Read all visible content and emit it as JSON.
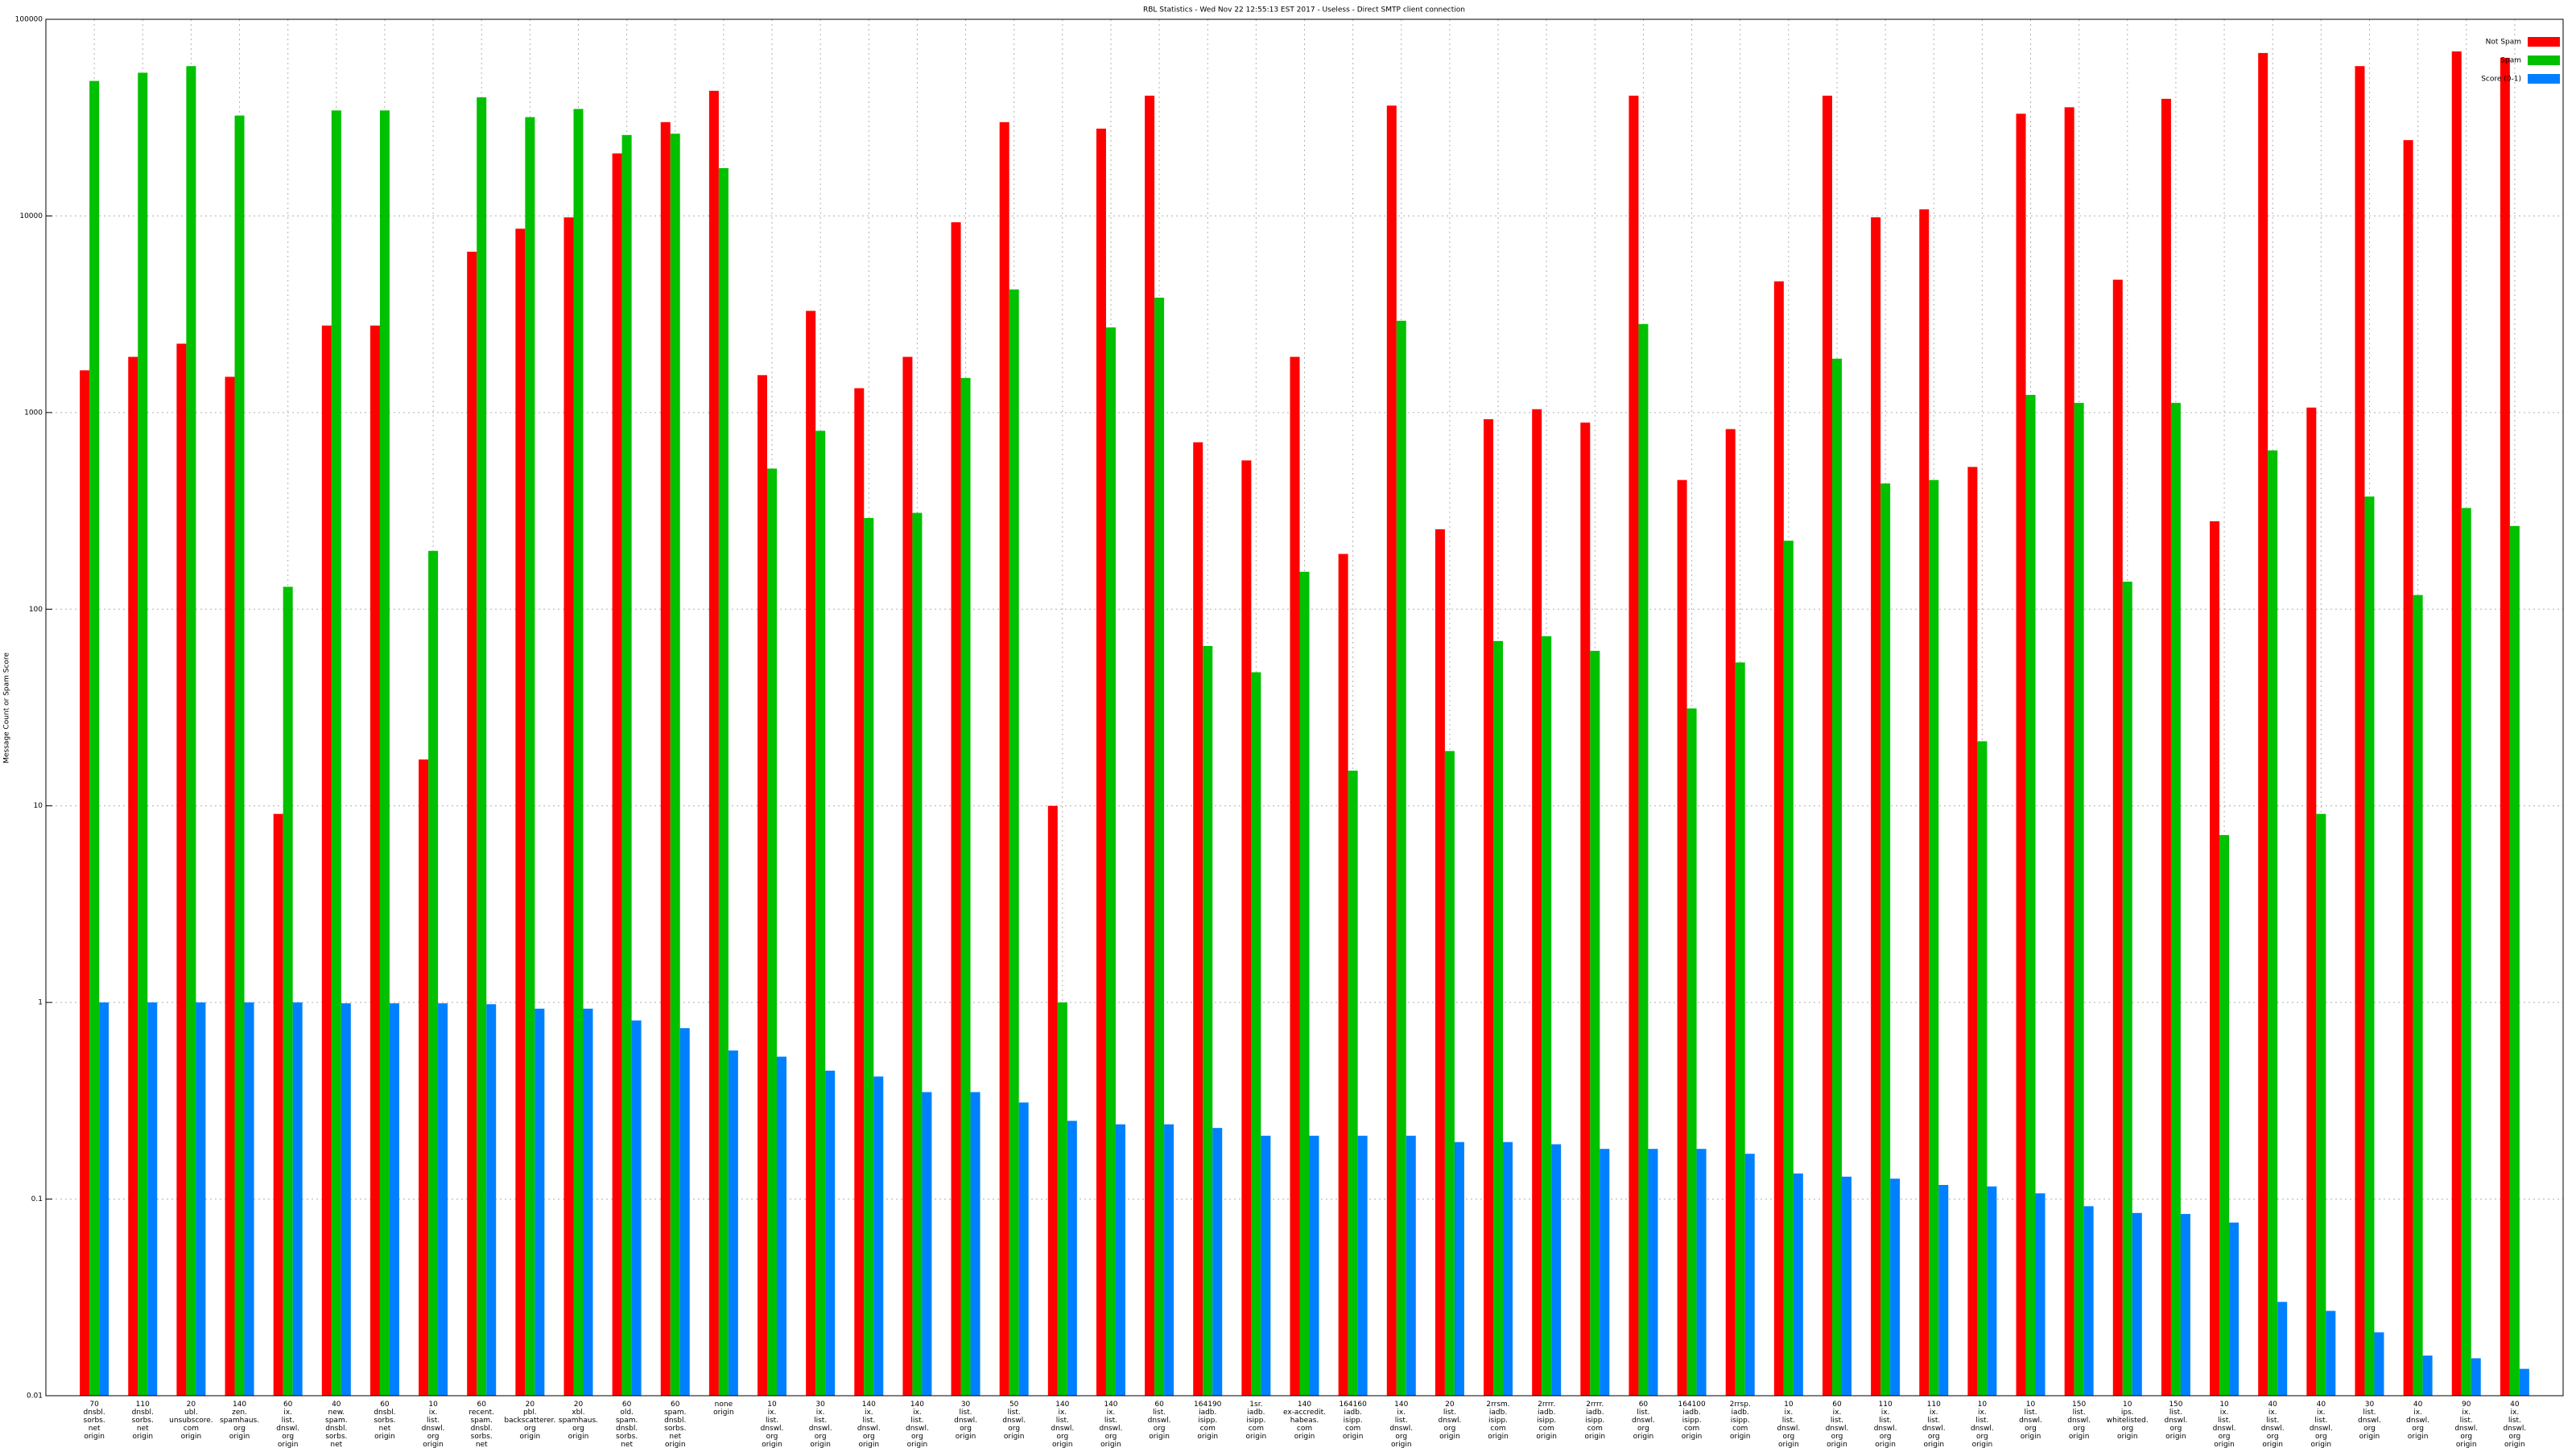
{
  "chart_data": {
    "type": "bar",
    "title": "RBL Statistics - Wed Nov 22 12:55:13 EST 2017 - Useless - Direct SMTP client connection",
    "ylabel": "Message Count or Spam Score",
    "log_y": true,
    "grid": true,
    "legend": "upper right",
    "ylim": [
      0.01,
      100000
    ],
    "yticks": [
      0.01,
      0.1,
      1,
      10,
      100,
      1000,
      10000,
      100000
    ],
    "categories": [
      [
        "70",
        "dnsbl.",
        "sorbs.",
        "net",
        "origin"
      ],
      [
        "110",
        "dnsbl.",
        "sorbs.",
        "net",
        "origin"
      ],
      [
        "20",
        "ubl.",
        "unsubscore.",
        "com",
        "origin"
      ],
      [
        "140",
        "zen.",
        "spamhaus.",
        "org",
        "origin"
      ],
      [
        "60",
        "ix.",
        "list.",
        "dnswl.",
        "org",
        "origin"
      ],
      [
        "40",
        "new.",
        "spam.",
        "dnsbl.",
        "sorbs.",
        "net",
        "origin"
      ],
      [
        "60",
        "dnsbl.",
        "sorbs.",
        "net",
        "origin"
      ],
      [
        "10",
        "ix.",
        "list.",
        "dnswl.",
        "org",
        "origin"
      ],
      [
        "60",
        "recent.",
        "spam.",
        "dnsbl.",
        "sorbs.",
        "net",
        "origin"
      ],
      [
        "20",
        "pbl.",
        "backscatterer.",
        "org",
        "origin"
      ],
      [
        "20",
        "xbl.",
        "spamhaus.",
        "org",
        "origin"
      ],
      [
        "60",
        "old.",
        "spam.",
        "dnsbl.",
        "sorbs.",
        "net",
        "origin"
      ],
      [
        "60",
        "spam.",
        "dnsbl.",
        "sorbs.",
        "net",
        "origin"
      ],
      [
        "none",
        "origin"
      ],
      [
        "10",
        "ix.",
        "list.",
        "dnswl.",
        "org",
        "origin"
      ],
      [
        "30",
        "ix.",
        "list.",
        "dnswl.",
        "org",
        "origin"
      ],
      [
        "140",
        "ix.",
        "list.",
        "dnswl.",
        "org",
        "origin"
      ],
      [
        "140",
        "ix.",
        "list.",
        "dnswl.",
        "org",
        "origin"
      ],
      [
        "30",
        "list.",
        "dnswl.",
        "org",
        "origin"
      ],
      [
        "50",
        "list.",
        "dnswl.",
        "org",
        "origin"
      ],
      [
        "140",
        "ix.",
        "list.",
        "dnswl.",
        "org",
        "origin"
      ],
      [
        "140",
        "ix.",
        "list.",
        "dnswl.",
        "org",
        "origin"
      ],
      [
        "60",
        "list.",
        "dnswl.",
        "org",
        "origin"
      ],
      [
        "164190",
        "iadb.",
        "isipp.",
        "com",
        "origin"
      ],
      [
        "1sr.",
        "iadb.",
        "isipp.",
        "com",
        "origin"
      ],
      [
        "140",
        "ex-accredit.",
        "habeas.",
        "com",
        "origin"
      ],
      [
        "164160",
        "iadb.",
        "isipp.",
        "com",
        "origin"
      ],
      [
        "140",
        "ix.",
        "list.",
        "dnswl.",
        "org",
        "origin"
      ],
      [
        "20",
        "list.",
        "dnswl.",
        "org",
        "origin"
      ],
      [
        "2rrsm.",
        "iadb.",
        "isipp.",
        "com",
        "origin"
      ],
      [
        "2rrrr.",
        "iadb.",
        "isipp.",
        "com",
        "origin"
      ],
      [
        "2rrrr.",
        "iadb.",
        "isipp.",
        "com",
        "origin"
      ],
      [
        "60",
        "list.",
        "dnswl.",
        "org",
        "origin"
      ],
      [
        "164100",
        "iadb.",
        "isipp.",
        "com",
        "origin"
      ],
      [
        "2rrsp.",
        "iadb.",
        "isipp.",
        "com",
        "origin"
      ],
      [
        "10",
        "ix.",
        "list.",
        "dnswl.",
        "org",
        "origin"
      ],
      [
        "60",
        "ix.",
        "list.",
        "dnswl.",
        "org",
        "origin"
      ],
      [
        "110",
        "ix.",
        "list.",
        "dnswl.",
        "org",
        "origin"
      ],
      [
        "110",
        "ix.",
        "list.",
        "dnswl.",
        "org",
        "origin"
      ],
      [
        "10",
        "ix.",
        "list.",
        "dnswl.",
        "org",
        "origin"
      ],
      [
        "10",
        "list.",
        "dnswl.",
        "org",
        "origin"
      ],
      [
        "150",
        "list.",
        "dnswl.",
        "org",
        "origin"
      ],
      [
        "10",
        "ips.",
        "whitelisted.",
        "org",
        "origin"
      ],
      [
        "150",
        "list.",
        "dnswl.",
        "org",
        "origin"
      ],
      [
        "10",
        "ix.",
        "list.",
        "dnswl.",
        "org",
        "origin"
      ],
      [
        "40",
        "ix.",
        "list.",
        "dnswl.",
        "org",
        "origin"
      ],
      [
        "40",
        "ix.",
        "list.",
        "dnswl.",
        "org",
        "origin"
      ],
      [
        "30",
        "list.",
        "dnswl.",
        "org",
        "origin"
      ],
      [
        "40",
        "ix.",
        "dnswl.",
        "org",
        "origin"
      ],
      [
        "90",
        "ix.",
        "list.",
        "dnswl.",
        "org",
        "origin"
      ],
      [
        "40",
        "ix.",
        "list.",
        "dnswl.",
        "org",
        "origin"
      ]
    ],
    "series": [
      {
        "name": "Not Spam",
        "color": "#ff0000",
        "values": [
          1640,
          1920,
          2240,
          1520,
          9.1,
          2770,
          2770,
          17.2,
          6580,
          8610,
          9830,
          20800,
          30000,
          43300,
          1550,
          3290,
          1330,
          1920,
          9290,
          30000,
          10,
          27800,
          40900,
          706,
          571,
          1920,
          191,
          36400,
          255,
          925,
          1040,
          889,
          40900,
          454,
          824,
          4650,
          40900,
          9840,
          10800,
          529,
          33100,
          35700,
          4740,
          39400,
          280,
          67400,
          1060,
          57800,
          24300,
          68700,
          63700
        ]
      },
      {
        "name": "Spam",
        "color": "#00c000",
        "values": [
          48600,
          53500,
          57800,
          32400,
          130,
          34400,
          34400,
          198,
          40100,
          31800,
          35000,
          25800,
          26200,
          17500,
          519,
          808,
          291,
          309,
          1500,
          4230,
          1,
          2710,
          3840,
          65,
          47.8,
          155,
          15.1,
          2930,
          19,
          68.9,
          72.9,
          61.4,
          2820,
          31.3,
          53.6,
          223,
          1880,
          436,
          454,
          21.3,
          1230,
          1120,
          138,
          1120,
          7.1,
          642,
          9.1,
          374,
          118,
          327,
          265
        ]
      },
      {
        "name": "Score (0-1)",
        "color": "#0080ff",
        "values": [
          1,
          1,
          1,
          1,
          1,
          0.99,
          0.99,
          0.99,
          0.98,
          0.93,
          0.93,
          0.81,
          0.74,
          0.57,
          0.53,
          0.45,
          0.42,
          0.35,
          0.35,
          0.31,
          0.25,
          0.24,
          0.24,
          0.23,
          0.21,
          0.21,
          0.21,
          0.21,
          0.195,
          0.195,
          0.19,
          0.18,
          0.18,
          0.18,
          0.17,
          0.135,
          0.13,
          0.127,
          0.118,
          0.116,
          0.107,
          0.092,
          0.085,
          0.084,
          0.076,
          0.03,
          0.027,
          0.021,
          0.016,
          0.0155,
          0.0137
        ]
      }
    ]
  }
}
